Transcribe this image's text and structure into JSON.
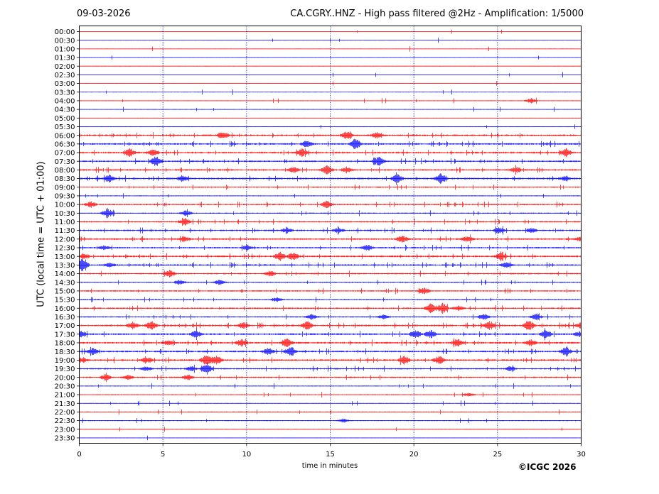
{
  "header": {
    "date": "09-03-2026",
    "title": "CA.CGRY..HNZ - High pass filtered @2Hz - Amplification: 1/5000"
  },
  "footer": {
    "copyright": "©ICGC 2026"
  },
  "colors": {
    "trace_a": "#ff0000",
    "trace_b": "#0000ff",
    "grid": "#000080",
    "frame": "#000000"
  },
  "chart_data": {
    "type": "line",
    "xlabel": "time in minutes",
    "ylabel": "UTC (local time = UTC + 01:00)",
    "xlim": [
      0,
      30
    ],
    "x_ticks": [
      0,
      5,
      10,
      15,
      20,
      25,
      30
    ],
    "x_gridlines": [
      5,
      10,
      15,
      20,
      25
    ],
    "rows": [
      "00:00",
      "00:30",
      "01:00",
      "01:30",
      "02:00",
      "02:30",
      "03:00",
      "03:30",
      "04:00",
      "04:30",
      "05:00",
      "05:30",
      "06:00",
      "06:30",
      "07:00",
      "07:30",
      "08:00",
      "08:30",
      "09:00",
      "09:30",
      "10:00",
      "10:30",
      "11:00",
      "11:30",
      "12:00",
      "12:30",
      "13:00",
      "13:30",
      "14:00",
      "14:30",
      "15:00",
      "15:30",
      "16:00",
      "16:30",
      "17:00",
      "17:30",
      "18:00",
      "18:30",
      "19:00",
      "19:30",
      "20:00",
      "20:30",
      "21:00",
      "21:30",
      "22:00",
      "22:30",
      "23:00",
      "23:30"
    ],
    "row_colors": "alternating red (:00) / blue (:30)",
    "activity": [
      0.1,
      0.1,
      0.1,
      0.1,
      0.1,
      0.1,
      0.1,
      0.1,
      0.2,
      0.15,
      0.15,
      0.2,
      1.0,
      0.9,
      1.0,
      0.8,
      0.9,
      1.0,
      0.6,
      0.3,
      0.7,
      0.5,
      0.7,
      0.8,
      0.9,
      0.8,
      1.0,
      0.8,
      0.7,
      0.5,
      0.6,
      0.5,
      0.8,
      0.6,
      1.0,
      1.0,
      1.0,
      0.9,
      1.0,
      0.7,
      0.7,
      0.3,
      0.3,
      0.3,
      0.3,
      0.3,
      0.2,
      0.15
    ],
    "bursts": [
      {
        "row": 8,
        "x": 27.0,
        "amp": 0.6
      },
      {
        "row": 12,
        "x": 8.6,
        "amp": 1.0
      },
      {
        "row": 12,
        "x": 16.0,
        "amp": 1.0
      },
      {
        "row": 12,
        "x": 17.8,
        "amp": 0.6
      },
      {
        "row": 13,
        "x": 13.6,
        "amp": 0.8
      },
      {
        "row": 13,
        "x": 16.5,
        "amp": 1.2
      },
      {
        "row": 14,
        "x": 3.0,
        "amp": 1.0
      },
      {
        "row": 14,
        "x": 4.4,
        "amp": 0.8
      },
      {
        "row": 14,
        "x": 13.3,
        "amp": 0.9
      },
      {
        "row": 14,
        "x": 29.1,
        "amp": 1.0
      },
      {
        "row": 15,
        "x": 4.6,
        "amp": 1.3
      },
      {
        "row": 15,
        "x": 17.9,
        "amp": 1.2
      },
      {
        "row": 16,
        "x": 12.8,
        "amp": 0.7
      },
      {
        "row": 16,
        "x": 14.8,
        "amp": 1.0
      },
      {
        "row": 16,
        "x": 16.0,
        "amp": 0.6
      },
      {
        "row": 16,
        "x": 26.1,
        "amp": 0.7
      },
      {
        "row": 17,
        "x": 1.8,
        "amp": 0.9
      },
      {
        "row": 17,
        "x": 6.2,
        "amp": 0.6
      },
      {
        "row": 17,
        "x": 19.0,
        "amp": 1.0
      },
      {
        "row": 17,
        "x": 21.6,
        "amp": 1.2
      },
      {
        "row": 17,
        "x": 29.0,
        "amp": 0.5
      },
      {
        "row": 20,
        "x": 0.7,
        "amp": 0.7
      },
      {
        "row": 20,
        "x": 14.8,
        "amp": 0.8
      },
      {
        "row": 21,
        "x": 1.7,
        "amp": 1.2
      },
      {
        "row": 21,
        "x": 6.4,
        "amp": 0.6
      },
      {
        "row": 22,
        "x": 6.3,
        "amp": 0.9
      },
      {
        "row": 23,
        "x": 12.4,
        "amp": 0.6
      },
      {
        "row": 23,
        "x": 15.5,
        "amp": 0.6
      },
      {
        "row": 23,
        "x": 25.1,
        "amp": 0.8
      },
      {
        "row": 23,
        "x": 27.0,
        "amp": 0.6
      },
      {
        "row": 24,
        "x": 6.3,
        "amp": 0.7
      },
      {
        "row": 24,
        "x": 19.3,
        "amp": 0.8
      },
      {
        "row": 24,
        "x": 23.2,
        "amp": 0.8
      },
      {
        "row": 24,
        "x": 30.0,
        "amp": 0.6
      },
      {
        "row": 25,
        "x": 1.5,
        "amp": 0.5
      },
      {
        "row": 25,
        "x": 10.0,
        "amp": 0.6
      },
      {
        "row": 25,
        "x": 17.2,
        "amp": 0.7
      },
      {
        "row": 26,
        "x": 0.3,
        "amp": 0.7
      },
      {
        "row": 26,
        "x": 12.0,
        "amp": 1.0
      },
      {
        "row": 26,
        "x": 12.8,
        "amp": 1.0
      },
      {
        "row": 26,
        "x": 25.2,
        "amp": 1.0
      },
      {
        "row": 27,
        "x": 0.2,
        "amp": 1.6
      },
      {
        "row": 27,
        "x": 1.8,
        "amp": 0.5
      },
      {
        "row": 27,
        "x": 25.5,
        "amp": 0.6
      },
      {
        "row": 28,
        "x": 5.4,
        "amp": 0.8
      },
      {
        "row": 28,
        "x": 11.4,
        "amp": 0.7
      },
      {
        "row": 29,
        "x": 6.0,
        "amp": 0.6
      },
      {
        "row": 29,
        "x": 8.4,
        "amp": 0.6
      },
      {
        "row": 30,
        "x": 20.6,
        "amp": 0.8
      },
      {
        "row": 31,
        "x": 11.8,
        "amp": 0.5
      },
      {
        "row": 32,
        "x": 21.0,
        "amp": 1.1
      },
      {
        "row": 32,
        "x": 21.7,
        "amp": 1.3
      },
      {
        "row": 32,
        "x": 22.7,
        "amp": 0.6
      },
      {
        "row": 33,
        "x": 13.9,
        "amp": 0.6
      },
      {
        "row": 33,
        "x": 18.2,
        "amp": 0.5
      },
      {
        "row": 33,
        "x": 24.2,
        "amp": 0.7
      },
      {
        "row": 33,
        "x": 27.3,
        "amp": 0.8
      },
      {
        "row": 34,
        "x": 3.2,
        "amp": 0.8
      },
      {
        "row": 34,
        "x": 4.3,
        "amp": 1.0
      },
      {
        "row": 34,
        "x": 9.8,
        "amp": 0.8
      },
      {
        "row": 34,
        "x": 13.6,
        "amp": 1.0
      },
      {
        "row": 34,
        "x": 24.5,
        "amp": 1.0
      },
      {
        "row": 34,
        "x": 26.9,
        "amp": 1.1
      },
      {
        "row": 34,
        "x": 30.0,
        "amp": 0.6
      },
      {
        "row": 35,
        "x": 0.1,
        "amp": 0.7
      },
      {
        "row": 35,
        "x": 7.0,
        "amp": 0.9
      },
      {
        "row": 35,
        "x": 20.1,
        "amp": 0.9
      },
      {
        "row": 35,
        "x": 21.0,
        "amp": 1.0
      },
      {
        "row": 35,
        "x": 27.9,
        "amp": 1.0
      },
      {
        "row": 35,
        "x": 29.9,
        "amp": 0.6
      },
      {
        "row": 36,
        "x": 5.3,
        "amp": 0.6
      },
      {
        "row": 36,
        "x": 9.7,
        "amp": 0.9
      },
      {
        "row": 36,
        "x": 12.4,
        "amp": 1.0
      },
      {
        "row": 36,
        "x": 22.6,
        "amp": 0.9
      },
      {
        "row": 36,
        "x": 27.0,
        "amp": 0.7
      },
      {
        "row": 37,
        "x": 0.8,
        "amp": 0.8
      },
      {
        "row": 37,
        "x": 11.3,
        "amp": 0.8
      },
      {
        "row": 37,
        "x": 12.6,
        "amp": 1.3
      },
      {
        "row": 37,
        "x": 29.1,
        "amp": 1.0
      },
      {
        "row": 38,
        "x": 0.2,
        "amp": 0.6
      },
      {
        "row": 38,
        "x": 4.0,
        "amp": 0.8
      },
      {
        "row": 38,
        "x": 7.6,
        "amp": 1.3
      },
      {
        "row": 38,
        "x": 8.2,
        "amp": 1.0
      },
      {
        "row": 38,
        "x": 19.4,
        "amp": 1.0
      },
      {
        "row": 38,
        "x": 21.5,
        "amp": 1.0
      },
      {
        "row": 39,
        "x": 4.0,
        "amp": 0.5
      },
      {
        "row": 39,
        "x": 6.7,
        "amp": 0.6
      },
      {
        "row": 39,
        "x": 7.6,
        "amp": 1.5
      },
      {
        "row": 39,
        "x": 25.8,
        "amp": 0.6
      },
      {
        "row": 40,
        "x": 1.6,
        "amp": 0.7
      },
      {
        "row": 40,
        "x": 2.9,
        "amp": 0.5
      },
      {
        "row": 40,
        "x": 6.5,
        "amp": 0.6
      },
      {
        "row": 42,
        "x": 23.3,
        "amp": 0.4
      },
      {
        "row": 45,
        "x": 15.8,
        "amp": 0.4
      }
    ]
  }
}
